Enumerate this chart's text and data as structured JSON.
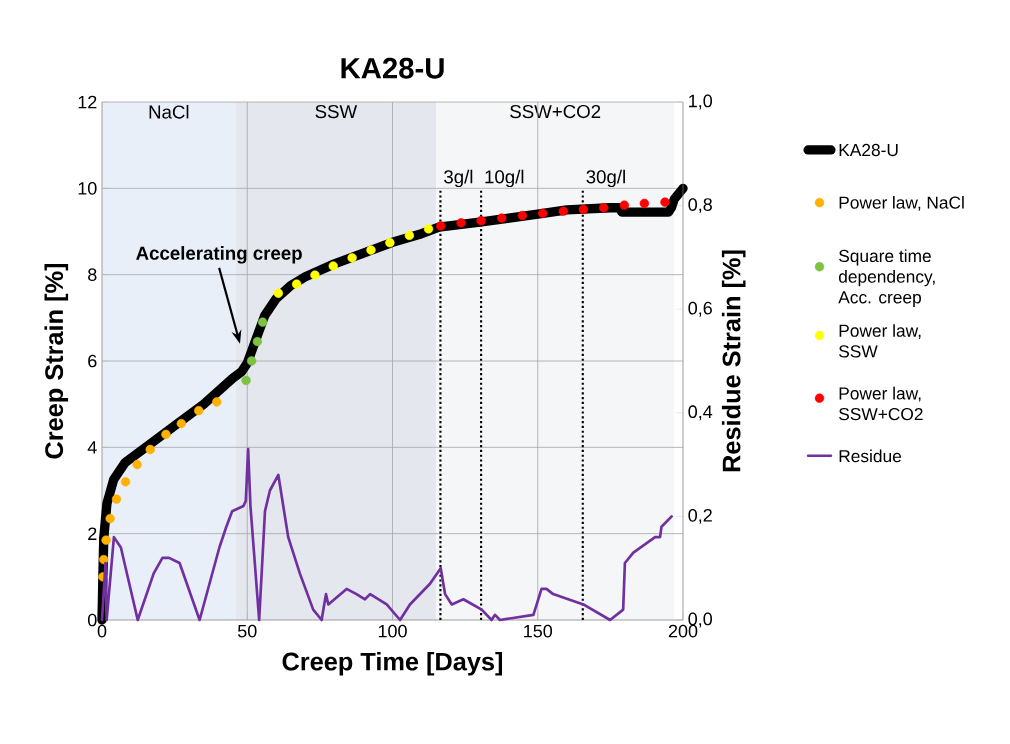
{
  "chart_data": {
    "type": "line",
    "title": "KA28-U",
    "xlabel": "Creep Time [Days]",
    "ylabel": "Creep Strain [%]",
    "y2label": "Residue Strain [%]",
    "xlim": [
      0,
      200
    ],
    "xticks": [
      0,
      50,
      100,
      150,
      200
    ],
    "ylim": [
      0,
      12
    ],
    "yticks": [
      0,
      2,
      4,
      6,
      8,
      10,
      12
    ],
    "y2lim": [
      0,
      1.0
    ],
    "y2ticks": [
      {
        "value": 0,
        "label": "0,0"
      },
      {
        "value": 0.2,
        "label": "0,2"
      },
      {
        "value": 0.4,
        "label": "0,4"
      },
      {
        "value": 0.6,
        "label": "0,6"
      },
      {
        "value": 0.8,
        "label": "0,8"
      },
      {
        "value": 1.0,
        "label": "1,0"
      }
    ],
    "grid": true,
    "legend": "right",
    "series": [
      {
        "name": "KA28-U",
        "color": "#000000",
        "x": [
          0,
          0.3,
          0.6,
          1.7,
          4,
          8,
          16,
          25,
          35,
          45,
          48,
          50,
          53,
          56,
          60,
          65,
          70,
          80,
          90,
          100,
          110,
          116,
          130,
          150,
          160,
          175,
          178,
          179,
          195,
          196,
          197,
          200
        ],
        "values": [
          0,
          1.0,
          1.9,
          2.7,
          3.25,
          3.65,
          4.05,
          4.5,
          5.0,
          5.6,
          5.75,
          5.95,
          6.5,
          7.05,
          7.45,
          7.75,
          7.95,
          8.25,
          8.5,
          8.75,
          8.95,
          9.1,
          9.22,
          9.4,
          9.5,
          9.55,
          9.55,
          9.45,
          9.45,
          9.55,
          9.75,
          10.0
        ]
      },
      {
        "name": "Power law, NaCl",
        "type": "scatter",
        "marker": "circle",
        "color": "#ffb000",
        "x": [
          0.3,
          0.6,
          1.4,
          2.8,
          5.0,
          8.1,
          12.1,
          16.6,
          22.0,
          27.3,
          33.3,
          39.5
        ],
        "values": [
          1.0,
          1.4,
          1.85,
          2.35,
          2.8,
          3.2,
          3.6,
          3.95,
          4.3,
          4.55,
          4.85,
          5.05
        ]
      },
      {
        "name": "Square time dependency, Acc. creep",
        "type": "scatter",
        "marker": "circle",
        "color": "#7dc242",
        "x": [
          49.6,
          51.5,
          53.5,
          55.3
        ],
        "values": [
          5.55,
          6.0,
          6.45,
          6.9
        ]
      },
      {
        "name": "Power law, SSW",
        "type": "scatter",
        "marker": "circle",
        "color": "#ffff00",
        "x": [
          60.7,
          67.0,
          73.3,
          79.6,
          86.1,
          92.6,
          99.1,
          105.8,
          112.4
        ],
        "values": [
          7.57,
          7.78,
          7.99,
          8.2,
          8.39,
          8.57,
          8.74,
          8.91,
          9.06
        ]
      },
      {
        "name": "Power law, SSW+CO2",
        "type": "scatter",
        "marker": "circle",
        "color": "#ff0000",
        "x": [
          116.6,
          123.6,
          130.5,
          137.6,
          144.7,
          151.7,
          158.8,
          165.7,
          172.7,
          179.8,
          186.7,
          193.8
        ],
        "values": [
          9.13,
          9.2,
          9.25,
          9.31,
          9.37,
          9.42,
          9.47,
          9.51,
          9.55,
          9.61,
          9.65,
          9.68
        ]
      },
      {
        "name": "Residue",
        "axis": "y2",
        "color": "#7030a0",
        "x": [
          0,
          1.2,
          1.6,
          4.1,
          6.5,
          12.3,
          17.8,
          20.8,
          23.1,
          26.7,
          33.6,
          40.4,
          42.8,
          44.8,
          48.7,
          49.5,
          50.3,
          51.1,
          54.1,
          56.1,
          57.8,
          60.7,
          64.1,
          68.1,
          72.7,
          75.6,
          77.1,
          77.9,
          84.2,
          87.6,
          90.5,
          92.3,
          98.0,
          102.6,
          106.0,
          112.9,
          116.6,
          118.1,
          120.4,
          124.4,
          130.7,
          134.1,
          135.3,
          137.0,
          148.5,
          151.3,
          153.0,
          155.3,
          165.7,
          174.9,
          179.4,
          180.0,
          182.9,
          190.4,
          192.1,
          192.6,
          196.1
        ],
        "values": [
          0,
          0.11,
          0,
          0.16,
          0.14,
          0,
          0.09,
          0.12,
          0.12,
          0.11,
          0,
          0.14,
          0.18,
          0.21,
          0.22,
          0.23,
          0.33,
          0.22,
          0,
          0.21,
          0.25,
          0.28,
          0.16,
          0.09,
          0.02,
          0,
          0.05,
          0.03,
          0.06,
          0.05,
          0.04,
          0.05,
          0.03,
          0,
          0.03,
          0.07,
          0.1,
          0.05,
          0.03,
          0.04,
          0.02,
          0,
          0.01,
          0,
          0.01,
          0.06,
          0.06,
          0.05,
          0.03,
          0,
          0.02,
          0.11,
          0.13,
          0.16,
          0.16,
          0.18,
          0.2
        ]
      }
    ],
    "bands": [
      {
        "axis": "x",
        "from": 0,
        "to": 46,
        "label": "NaCl",
        "color": "#e9eff8"
      },
      {
        "axis": "x",
        "from": 46,
        "to": 115,
        "label": "SSW",
        "color": "#e4e7ed"
      },
      {
        "axis": "x",
        "from": 115,
        "to": 197,
        "label": "SSW+CO2",
        "color": "#f5f6f8"
      }
    ],
    "ref_lines": [
      {
        "axis": "x",
        "value": 116.5,
        "label": "3g/l",
        "color": "#000000",
        "line_style": "dotted"
      },
      {
        "axis": "x",
        "value": 130.5,
        "label": "10g/l",
        "color": "#000000",
        "line_style": "dotted"
      },
      {
        "axis": "x",
        "value": 165.5,
        "label": "30g/l",
        "color": "#000000",
        "line_style": "dotted"
      }
    ],
    "annotations": [
      {
        "text": "Accelerating creep",
        "x": 47.5,
        "y": 6.4
      }
    ]
  }
}
